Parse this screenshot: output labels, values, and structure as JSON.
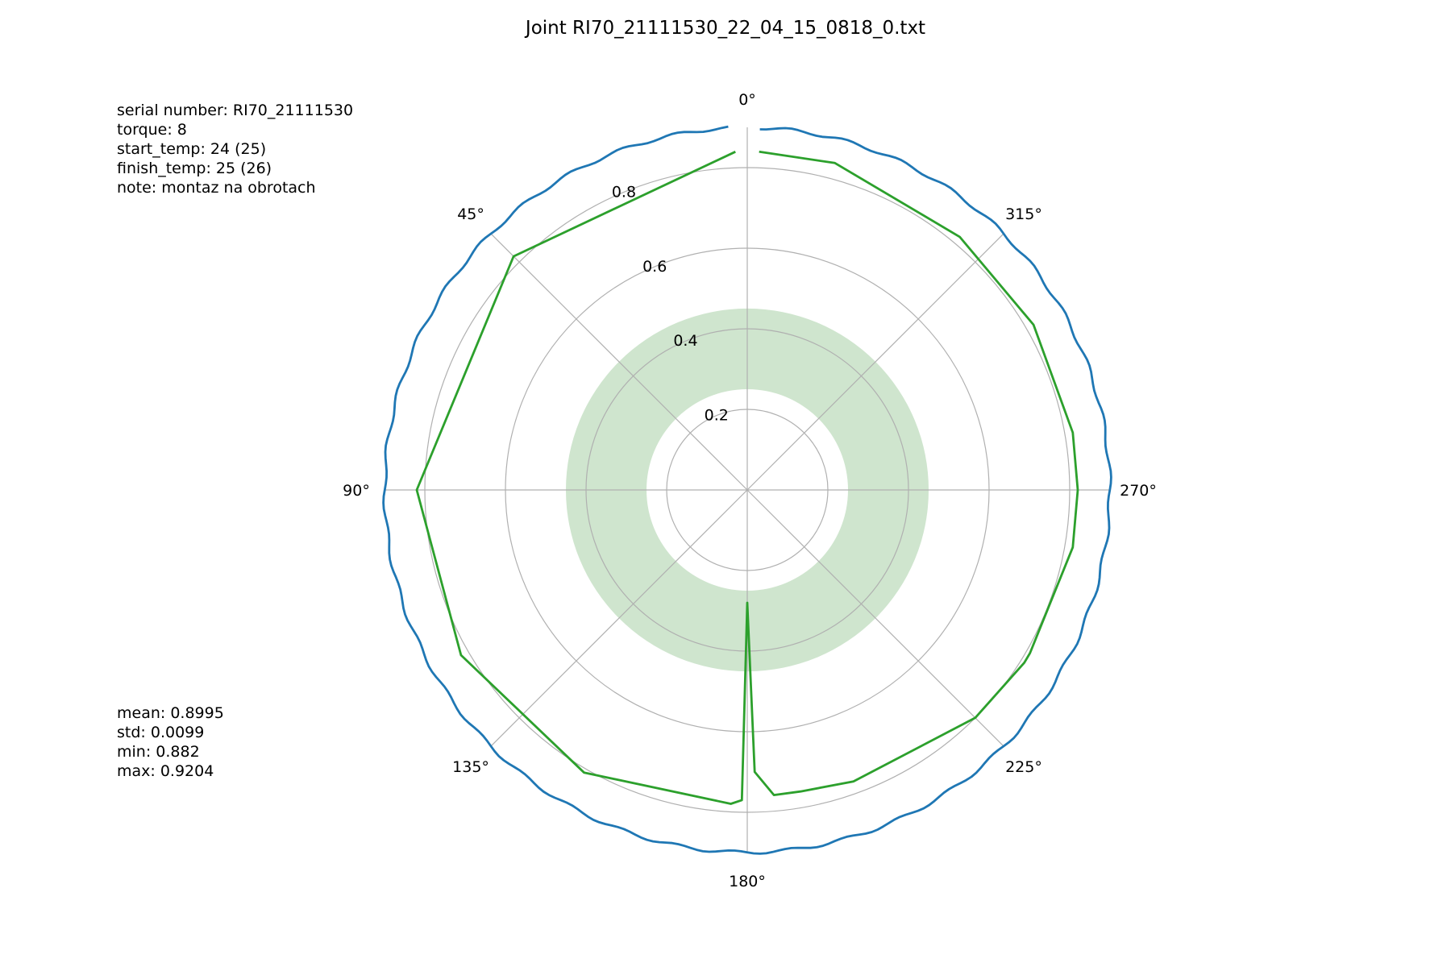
{
  "chart_data": {
    "type": "polar-line",
    "title": "Joint RI70_21111530_22_04_15_0818_0.txt",
    "theta_direction": "counterclockwise",
    "theta_zero": "top",
    "radial_ticks": [
      0.2,
      0.4,
      0.6,
      0.8
    ],
    "radial_tick_labels": [
      "0.2",
      "0.4",
      "0.6",
      "0.8"
    ],
    "angle_ticks": [
      0,
      45,
      90,
      135,
      180,
      225,
      270,
      315
    ],
    "angle_tick_labels": [
      "0°",
      "45°",
      "90°",
      "135°",
      "180°",
      "225°",
      "270°",
      "315°"
    ],
    "rlim": [
      0,
      0.9
    ],
    "grid": true,
    "band": {
      "color": "#cfe5ce",
      "r_min": 0.25,
      "r_max": 0.45
    },
    "series": [
      {
        "color": "#1f77b4",
        "mean_value": 0.8995,
        "ripple_amplitude": 0.004,
        "theta_range": [
          3,
          358
        ]
      },
      {
        "color": "#2ca02c",
        "theta": [
          2,
          45,
          90,
          120,
          150,
          177,
          179,
          180,
          181.5,
          185,
          190,
          200,
          225,
          238,
          240,
          260,
          270,
          280,
          300,
          320,
          345,
          358
        ],
        "r": [
          0.84,
          0.82,
          0.82,
          0.82,
          0.81,
          0.78,
          0.77,
          0.28,
          0.7,
          0.76,
          0.76,
          0.77,
          0.8,
          0.81,
          0.81,
          0.82,
          0.82,
          0.82,
          0.82,
          0.82,
          0.84,
          0.84
        ]
      }
    ]
  },
  "info_top": [
    "serial number: RI70_21111530",
    "torque: 8",
    "start_temp: 24 (25)",
    "finish_temp: 25 (26)",
    "note: montaz na obrotach"
  ],
  "info_bottom": [
    "mean: 0.8995",
    "std: 0.0099",
    "min: 0.882",
    "max: 0.9204"
  ]
}
